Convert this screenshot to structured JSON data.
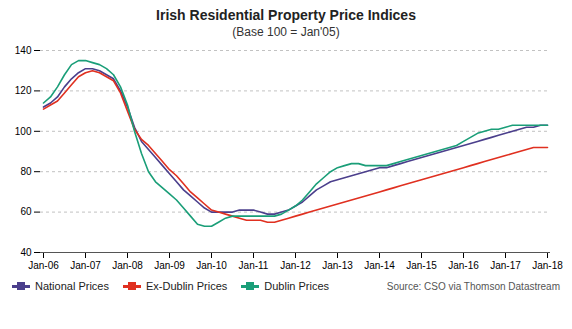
{
  "chart_data": {
    "type": "line",
    "title": "Irish Residential Property Price Indices",
    "subtitle": "(Base 100 = Jan'05)",
    "annotations": [
      "Source: CSO via Thomson Datastream"
    ],
    "categories": [
      "Jan-06",
      null,
      null,
      null,
      null,
      null,
      "Jan-07",
      null,
      null,
      null,
      null,
      null,
      "Jan-08",
      null,
      null,
      null,
      null,
      null,
      "Jan-09",
      null,
      null,
      null,
      null,
      null,
      "Jan-10",
      null,
      null,
      null,
      null,
      null,
      "Jan-11",
      null,
      null,
      null,
      null,
      null,
      "Jan-12",
      null,
      null,
      null,
      null,
      null,
      "Jan-13",
      null,
      null,
      null,
      null,
      null,
      "Jan-14",
      null,
      null,
      null,
      null,
      null,
      "Jan-15",
      null,
      null,
      null,
      null,
      null,
      "Jan-16",
      null,
      null,
      null,
      null,
      null,
      "Jan-17",
      null,
      null,
      null,
      null,
      null,
      "Jan-18"
    ],
    "series": [
      {
        "name": "National Prices",
        "color": "#4b3f8c",
        "values": [
          112,
          114,
          117,
          122,
          126,
          129,
          131,
          131,
          130,
          128,
          126,
          120,
          112,
          102,
          95,
          91,
          87,
          83,
          79,
          75,
          71,
          68,
          65,
          62,
          60,
          60,
          60,
          60,
          61,
          61,
          61,
          60,
          59,
          59,
          60,
          61,
          63,
          65,
          68,
          71,
          73,
          75,
          76,
          77,
          78,
          79,
          80,
          81,
          82,
          82,
          83,
          84,
          85,
          86,
          87,
          88,
          89,
          90,
          91,
          92,
          93,
          94,
          95,
          96,
          97,
          98,
          99,
          100,
          101,
          102,
          102,
          103,
          103
        ]
      },
      {
        "name": "Ex-Dublin Prices",
        "color": "#e03020",
        "values": [
          111,
          113,
          115,
          119,
          123,
          127,
          129,
          130,
          129,
          127,
          125,
          119,
          110,
          101,
          96,
          93,
          89,
          85,
          81,
          78,
          74,
          70,
          67,
          64,
          61,
          60,
          59,
          58,
          57,
          56,
          56,
          56,
          55,
          55,
          56,
          57,
          58,
          59,
          60,
          61,
          62,
          63,
          64,
          65,
          66,
          67,
          68,
          69,
          70,
          71,
          72,
          73,
          74,
          75,
          76,
          77,
          78,
          79,
          80,
          81,
          82,
          83,
          84,
          85,
          86,
          87,
          88,
          89,
          90,
          91,
          92,
          92,
          92
        ]
      },
      {
        "name": "Dublin Prices",
        "color": "#1a9e78",
        "values": [
          114,
          117,
          122,
          128,
          133,
          135,
          135,
          134,
          133,
          131,
          128,
          122,
          113,
          100,
          89,
          80,
          75,
          72,
          69,
          66,
          62,
          58,
          54,
          53,
          53,
          55,
          57,
          58,
          58,
          58,
          58,
          58,
          58,
          58,
          59,
          61,
          63,
          66,
          70,
          74,
          77,
          80,
          82,
          83,
          84,
          84,
          83,
          83,
          83,
          83,
          84,
          85,
          86,
          87,
          88,
          89,
          90,
          91,
          92,
          93,
          95,
          97,
          99,
          100,
          101,
          101,
          102,
          103,
          103,
          103,
          103,
          103,
          103
        ]
      }
    ],
    "ylim": [
      40,
      140
    ],
    "yticks": [
      40,
      60,
      80,
      100,
      120,
      140
    ],
    "grid": true,
    "legend": "bottom"
  }
}
